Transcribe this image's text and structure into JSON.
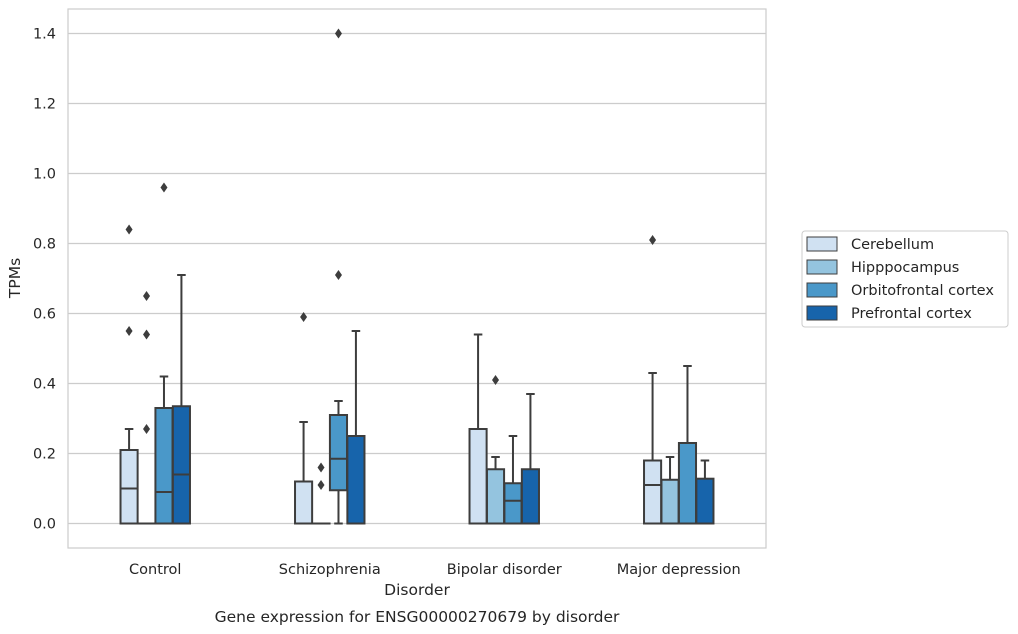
{
  "chart_data": {
    "type": "box",
    "title": "",
    "caption": "Gene expression for ENSG00000270679 by disorder",
    "xlabel": "Disorder",
    "ylabel": "TPMs",
    "ylim": [
      -0.07,
      1.47
    ],
    "yticks": [
      "0.0",
      "0.2",
      "0.4",
      "0.6",
      "0.8",
      "1.0",
      "1.2",
      "1.4"
    ],
    "categories": [
      "Control",
      "Schizophrenia",
      "Bipolar disorder",
      "Major depression"
    ],
    "grid": true,
    "legend_position": "right",
    "colors": [
      "#d0e1f2",
      "#94c4df",
      "#4a98c9",
      "#1764ab"
    ],
    "edge_color": "#3d3d3d",
    "series": [
      {
        "name": "Cerebellum",
        "boxes": [
          {
            "whislo": 0.0,
            "q1": 0.0,
            "med": 0.1,
            "q3": 0.21,
            "whishi": 0.27,
            "fliers": [
              0.84,
              0.55
            ]
          },
          {
            "whislo": 0.0,
            "q1": 0.0,
            "med": 0.0,
            "q3": 0.12,
            "whishi": 0.29,
            "fliers": [
              0.59
            ]
          },
          {
            "whislo": 0.0,
            "q1": 0.0,
            "med": 0.0,
            "q3": 0.27,
            "whishi": 0.54,
            "fliers": []
          },
          {
            "whislo": 0.0,
            "q1": 0.0,
            "med": 0.11,
            "q3": 0.18,
            "whishi": 0.43,
            "fliers": [
              0.81
            ]
          }
        ]
      },
      {
        "name": "Hipppocampus",
        "boxes": [
          {
            "whislo": 0.0,
            "q1": 0.0,
            "med": 0.0,
            "q3": 0.0,
            "whishi": 0.0,
            "fliers": [
              0.65,
              0.54,
              0.27
            ]
          },
          {
            "whislo": 0.0,
            "q1": 0.0,
            "med": 0.0,
            "q3": 0.0,
            "whishi": 0.0,
            "fliers": [
              0.16,
              0.11
            ]
          },
          {
            "whislo": 0.0,
            "q1": 0.0,
            "med": 0.0,
            "q3": 0.155,
            "whishi": 0.19,
            "fliers": [
              0.41
            ]
          },
          {
            "whislo": 0.0,
            "q1": 0.0,
            "med": 0.0,
            "q3": 0.125,
            "whishi": 0.19,
            "fliers": []
          }
        ]
      },
      {
        "name": "Orbitofrontal cortex",
        "boxes": [
          {
            "whislo": 0.0,
            "q1": 0.0,
            "med": 0.09,
            "q3": 0.33,
            "whishi": 0.42,
            "fliers": [
              0.96
            ]
          },
          {
            "whislo": 0.0,
            "q1": 0.095,
            "med": 0.185,
            "q3": 0.31,
            "whishi": 0.35,
            "fliers": [
              1.4,
              0.71
            ]
          },
          {
            "whislo": 0.0,
            "q1": 0.0,
            "med": 0.065,
            "q3": 0.115,
            "whishi": 0.25,
            "fliers": []
          },
          {
            "whislo": 0.0,
            "q1": 0.0,
            "med": 0.0,
            "q3": 0.23,
            "whishi": 0.45,
            "fliers": []
          }
        ]
      },
      {
        "name": "Prefrontal cortex",
        "boxes": [
          {
            "whislo": 0.0,
            "q1": 0.0,
            "med": 0.14,
            "q3": 0.335,
            "whishi": 0.71,
            "fliers": []
          },
          {
            "whislo": 0.0,
            "q1": 0.0,
            "med": 0.0,
            "q3": 0.25,
            "whishi": 0.55,
            "fliers": []
          },
          {
            "whislo": 0.0,
            "q1": 0.0,
            "med": 0.0,
            "q3": 0.155,
            "whishi": 0.37,
            "fliers": []
          },
          {
            "whislo": 0.0,
            "q1": 0.0,
            "med": 0.0,
            "q3": 0.128,
            "whishi": 0.18,
            "fliers": []
          }
        ]
      }
    ]
  }
}
